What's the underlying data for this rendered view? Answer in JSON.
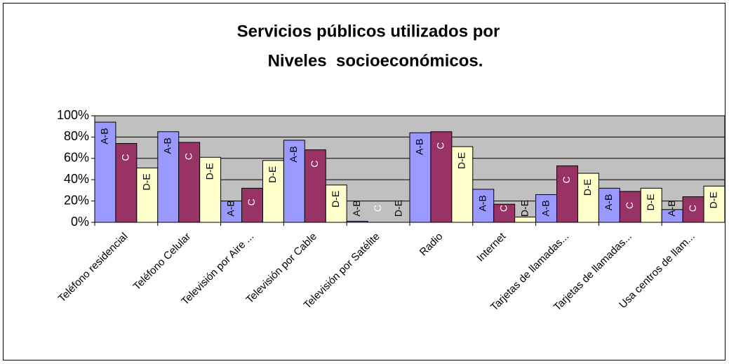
{
  "chart_data": {
    "type": "bar",
    "title": [
      "Servicios públicos utilizados por",
      "Niveles  socioeconómicos."
    ],
    "categories": [
      "Teléfono residencial",
      "Teléfono Celular",
      "Televisión por Aire ...",
      "Televisión por Cable",
      "Televisión por Satélite",
      "Radio",
      "Internet",
      "Tarjetas de llamadas...",
      "Tarjetas de llamadas...",
      "Usa centros de llam..."
    ],
    "series": [
      {
        "name": "A-B",
        "color": "#9999ff",
        "values": [
          94,
          85,
          20,
          77,
          1,
          84,
          31,
          26,
          32,
          12
        ]
      },
      {
        "name": "C",
        "color": "#993366",
        "values": [
          74,
          75,
          32,
          68,
          0,
          85,
          17,
          53,
          29,
          24
        ]
      },
      {
        "name": "D-E",
        "color": "#ffffcc",
        "values": [
          51,
          61,
          58,
          35,
          0,
          71,
          5,
          46,
          32,
          34
        ]
      }
    ],
    "ylim": [
      0,
      100
    ],
    "yticks": [
      {
        "value": 0,
        "label": "0%"
      },
      {
        "value": 20,
        "label": "20%"
      },
      {
        "value": 40,
        "label": "40%"
      },
      {
        "value": 60,
        "label": "60%"
      },
      {
        "value": 80,
        "label": "80%"
      },
      {
        "value": 100,
        "label": "100%"
      }
    ],
    "grid": true
  }
}
